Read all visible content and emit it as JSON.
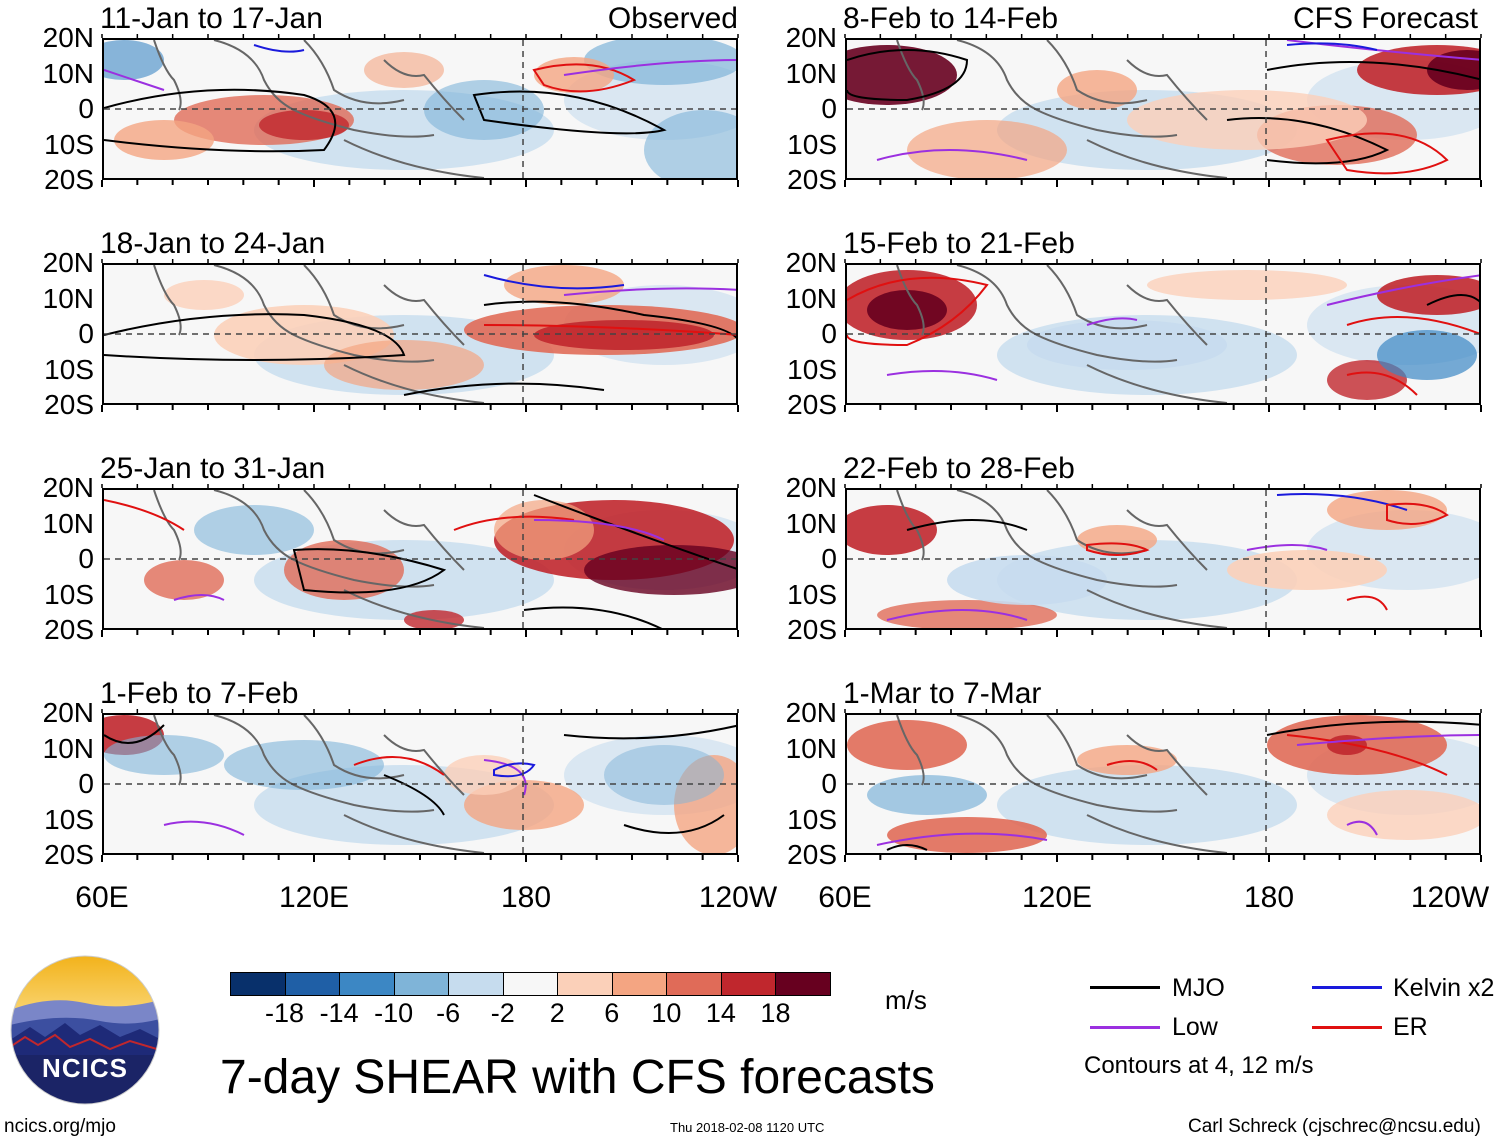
{
  "header": {
    "left_tag": "Observed",
    "right_tag": "CFS Forecast"
  },
  "panels": [
    {
      "title": "11-Jan to 17-Jan"
    },
    {
      "title": "18-Jan to 24-Jan"
    },
    {
      "title": "25-Jan to 31-Jan"
    },
    {
      "title": "1-Feb to 7-Feb"
    },
    {
      "title": "8-Feb to 14-Feb"
    },
    {
      "title": "15-Feb to 21-Feb"
    },
    {
      "title": "22-Feb to 28-Feb"
    },
    {
      "title": "1-Mar to 7-Mar"
    }
  ],
  "axes": {
    "lat_labels": [
      "20N",
      "10N",
      "0",
      "10S",
      "20S"
    ],
    "lon_labels": [
      "60E",
      "120E",
      "180",
      "120W"
    ]
  },
  "colorbar": {
    "colors": [
      "#08306b",
      "#1f5fa6",
      "#3c87c4",
      "#7fb4d8",
      "#c6dcee",
      "#f7f7f7",
      "#fbd0b9",
      "#f4a582",
      "#e06b58",
      "#c0272d",
      "#67001f"
    ],
    "labels": [
      "-18",
      "-14",
      "-10",
      "-6",
      "-2",
      "2",
      "6",
      "10",
      "14",
      "18"
    ],
    "units": "m/s"
  },
  "legend": {
    "mjo": {
      "label": "MJO",
      "color": "#000000"
    },
    "kelvin": {
      "label": "Kelvin x2",
      "color": "#1a1adc"
    },
    "low": {
      "label": "Low",
      "color": "#9b30e0"
    },
    "er": {
      "label": "ER",
      "color": "#e01010"
    },
    "note": "Contours at 4, 12 m/s"
  },
  "footer": {
    "main_title": "7-day SHEAR with CFS forecasts",
    "url": "ncics.org/mjo",
    "timestamp": "Thu 2018-02-08 1120 UTC",
    "credit": "Carl Schreck (cjschrec@ncsu.edu)",
    "logo_text": "NCICS"
  }
}
